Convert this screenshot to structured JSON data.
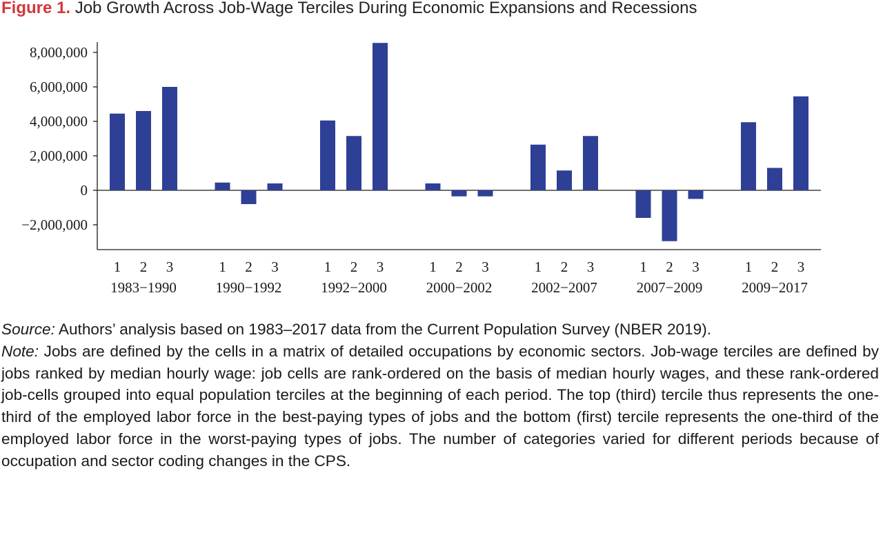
{
  "figure": {
    "label": "Figure 1.",
    "title": "Job Growth Across Job-Wage Terciles During Economic Expansions and Recessions"
  },
  "chart_data": {
    "type": "bar",
    "title": "Job Growth Across Job-Wage Terciles During Economic Expansions and Recessions",
    "xlabel": "",
    "ylabel": "",
    "ylim": [
      -3500000,
      8500000
    ],
    "yticks": [
      8000000,
      6000000,
      4000000,
      2000000,
      0,
      -2000000
    ],
    "ytick_labels": [
      "8,000,000",
      "6,000,000",
      "4,000,000",
      "2,000,000",
      "0",
      "−2,000,000"
    ],
    "bar_color": "#2e3f96",
    "grid": false,
    "legend": "none",
    "groups": [
      {
        "period": "1983−1990",
        "terciles": [
          "1",
          "2",
          "3"
        ],
        "values": [
          4450000,
          4600000,
          6000000
        ]
      },
      {
        "period": "1990−1992",
        "terciles": [
          "1",
          "2",
          "3"
        ],
        "values": [
          450000,
          -800000,
          400000
        ]
      },
      {
        "period": "1992−2000",
        "terciles": [
          "1",
          "2",
          "3"
        ],
        "values": [
          4050000,
          3150000,
          8550000
        ]
      },
      {
        "period": "2000−2002",
        "terciles": [
          "1",
          "2",
          "3"
        ],
        "values": [
          400000,
          -350000,
          -350000
        ]
      },
      {
        "period": "2002−2007",
        "terciles": [
          "1",
          "2",
          "3"
        ],
        "values": [
          2650000,
          1150000,
          3150000
        ]
      },
      {
        "period": "2007−2009",
        "terciles": [
          "1",
          "2",
          "3"
        ],
        "values": [
          -1600000,
          -2950000,
          -500000
        ]
      },
      {
        "period": "2009−2017",
        "terciles": [
          "1",
          "2",
          "3"
        ],
        "values": [
          3950000,
          1300000,
          5450000
        ]
      }
    ]
  },
  "source": {
    "label": "Source:",
    "text": " Authors’ analysis based on 1983–2017 data from the Current Population Survey (NBER 2019)."
  },
  "note": {
    "label": "Note:",
    "text": " Jobs are defined by the cells in a matrix of detailed occupations by economic sectors. Job-wage terciles are defined by jobs ranked by median hourly wage: job cells are rank-ordered on the basis of median hourly wages, and these rank-ordered job-cells grouped into equal population terciles at the beginning of each period. The top (third) tercile thus represents the one-third of the employed labor force in the best-paying types of jobs and the bottom (first) tercile represents the one-third of the employed labor force in the worst-paying types of jobs. The number of categories varied for different periods because of occupation and sector coding changes in the CPS."
  }
}
